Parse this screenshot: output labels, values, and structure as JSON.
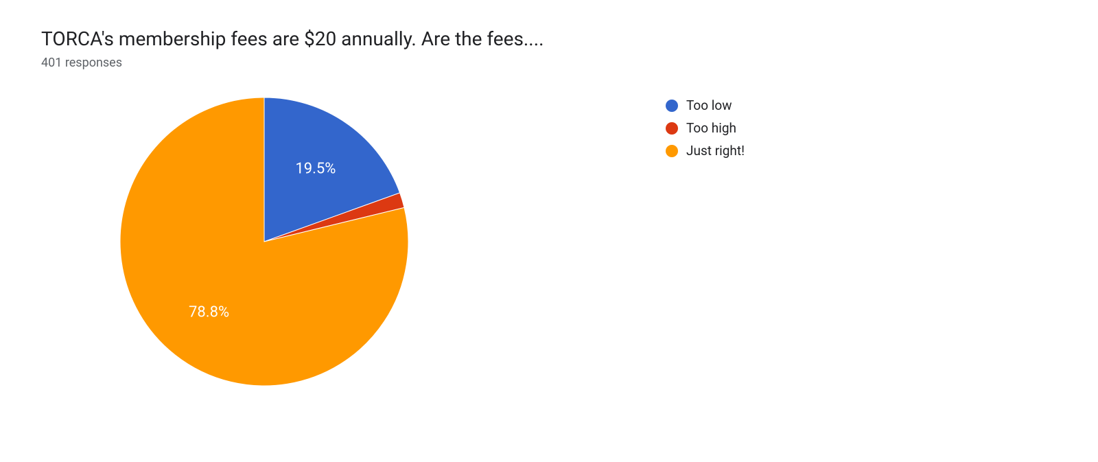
{
  "title": "TORCA's membership fees are $20 annually. Are the fees....",
  "subtitle": "401 responses",
  "chart": {
    "type": "pie",
    "background_color": "#ffffff",
    "slice_border_color": "#ffffff",
    "slice_border_width": 1,
    "label_color": "#ffffff",
    "label_fontsize": 22,
    "legend_fontsize": 19,
    "title_fontsize": 28,
    "subtitle_fontsize": 18,
    "title_color": "#202124",
    "subtitle_color": "#5f6368",
    "slices": [
      {
        "label": "Too low",
        "value": 19.5,
        "color": "#3366cc",
        "show_label": true,
        "display": "19.5%"
      },
      {
        "label": "Too high",
        "value": 1.7,
        "color": "#dc3912",
        "show_label": false,
        "display": "1.7%"
      },
      {
        "label": "Just right!",
        "value": 78.8,
        "color": "#ff9900",
        "show_label": true,
        "display": "78.8%"
      }
    ]
  }
}
